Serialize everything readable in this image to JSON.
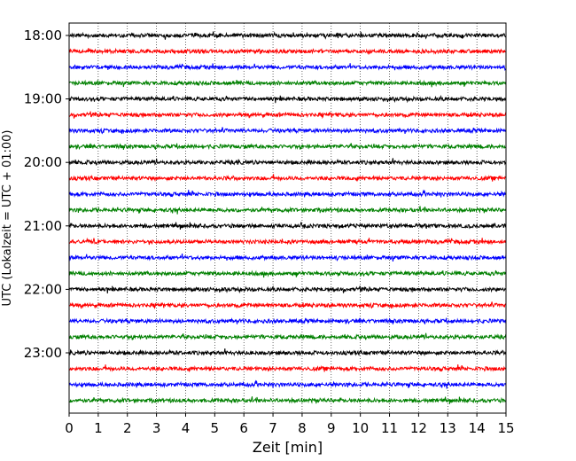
{
  "chart_data": {
    "type": "line",
    "title": "",
    "xlabel": "Zeit  [min]",
    "ylabel": "UTC (Lokalzeit = UTC + 01:00)",
    "xlim": [
      0,
      15
    ],
    "x_ticks": [
      0,
      1,
      2,
      3,
      4,
      5,
      6,
      7,
      8,
      9,
      10,
      11,
      12,
      13,
      14,
      15
    ],
    "x_tick_labels": [
      "0",
      "1",
      "2",
      "3",
      "4",
      "5",
      "6",
      "7",
      "8",
      "9",
      "10",
      "11",
      "12",
      "13",
      "14",
      "15"
    ],
    "y_tick_labels": [
      "18:00",
      "19:00",
      "20:00",
      "21:00",
      "22:00",
      "23:00"
    ],
    "y_tick_values": [
      18.0,
      19.0,
      20.0,
      21.0,
      22.0,
      23.0
    ],
    "row_interval_minutes": 15,
    "colors": [
      "#000000",
      "#ff0000",
      "#0000ff",
      "#008000"
    ],
    "rows": [
      {
        "start": "18:00",
        "color": "#000000"
      },
      {
        "start": "18:15",
        "color": "#ff0000"
      },
      {
        "start": "18:30",
        "color": "#0000ff"
      },
      {
        "start": "18:45",
        "color": "#008000"
      },
      {
        "start": "19:00",
        "color": "#000000"
      },
      {
        "start": "19:15",
        "color": "#ff0000"
      },
      {
        "start": "19:30",
        "color": "#0000ff"
      },
      {
        "start": "19:45",
        "color": "#008000"
      },
      {
        "start": "20:00",
        "color": "#000000"
      },
      {
        "start": "20:15",
        "color": "#ff0000"
      },
      {
        "start": "20:30",
        "color": "#0000ff"
      },
      {
        "start": "20:45",
        "color": "#008000"
      },
      {
        "start": "21:00",
        "color": "#000000"
      },
      {
        "start": "21:15",
        "color": "#ff0000"
      },
      {
        "start": "21:30",
        "color": "#0000ff"
      },
      {
        "start": "21:45",
        "color": "#008000"
      },
      {
        "start": "22:00",
        "color": "#000000"
      },
      {
        "start": "22:15",
        "color": "#ff0000"
      },
      {
        "start": "22:30",
        "color": "#0000ff"
      },
      {
        "start": "22:45",
        "color": "#008000"
      },
      {
        "start": "23:00",
        "color": "#000000"
      },
      {
        "start": "23:15",
        "color": "#ff0000"
      },
      {
        "start": "23:30",
        "color": "#0000ff"
      },
      {
        "start": "23:45",
        "color": "#008000"
      }
    ],
    "grid_vertical": true,
    "grid_style": "dotted",
    "legend": "none"
  }
}
